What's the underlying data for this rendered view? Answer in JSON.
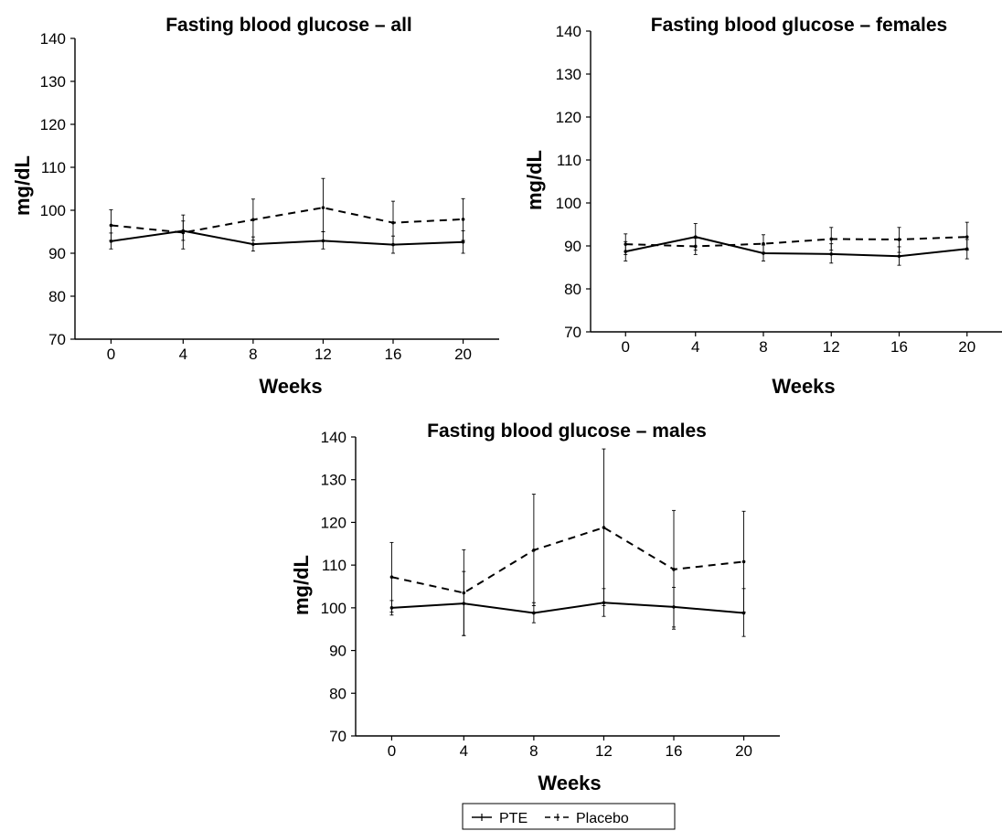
{
  "chart_data": [
    {
      "type": "line",
      "title": "Fasting blood glucose – all",
      "xlabel": "Weeks",
      "ylabel": "mg/dL",
      "x": [
        0,
        4,
        8,
        12,
        16,
        20
      ],
      "xticks": [
        "0",
        "4",
        "8",
        "12",
        "16",
        "20"
      ],
      "ylim": [
        70,
        140
      ],
      "yticks": [
        "70",
        "80",
        "90",
        "100",
        "110",
        "120",
        "130",
        "140"
      ],
      "grid": false,
      "series": [
        {
          "name": "PTE",
          "style": "solid",
          "values": [
            92.8,
            95.2,
            92.1,
            92.9,
            92.0,
            92.6
          ],
          "err_low": [
            91.0,
            93.0,
            90.5,
            91.0,
            90.0,
            90.0
          ],
          "err_high": [
            94.7,
            97.5,
            93.8,
            95.0,
            94.0,
            95.2
          ]
        },
        {
          "name": "Placebo",
          "style": "dashed",
          "values": [
            96.5,
            94.8,
            97.8,
            100.6,
            97.1,
            97.9
          ],
          "err_low": [
            93.0,
            91.0,
            93.0,
            95.0,
            92.0,
            93.0
          ],
          "err_high": [
            100.1,
            98.9,
            102.6,
            107.4,
            102.1,
            102.7
          ]
        }
      ]
    },
    {
      "type": "line",
      "title": "Fasting blood glucose – females",
      "xlabel": "Weeks",
      "ylabel": "mg/dL",
      "x": [
        0,
        4,
        8,
        12,
        16,
        20
      ],
      "xticks": [
        "0",
        "4",
        "8",
        "12",
        "16",
        "20"
      ],
      "ylim": [
        70,
        140
      ],
      "yticks": [
        "70",
        "80",
        "90",
        "100",
        "110",
        "120",
        "130",
        "140"
      ],
      "grid": false,
      "series": [
        {
          "name": "PTE",
          "style": "solid",
          "values": [
            88.7,
            92.1,
            88.3,
            88.1,
            87.6,
            89.3
          ],
          "err_low": [
            86.5,
            89.0,
            86.5,
            86.0,
            85.5,
            87.0
          ],
          "err_high": [
            91.0,
            95.2,
            90.2,
            90.5,
            89.8,
            91.5
          ]
        },
        {
          "name": "Placebo",
          "style": "dashed",
          "values": [
            90.4,
            89.9,
            90.5,
            91.6,
            91.5,
            92.1
          ],
          "err_low": [
            88.0,
            88.0,
            88.5,
            89.0,
            88.5,
            89.0
          ],
          "err_high": [
            92.8,
            91.8,
            92.6,
            94.3,
            94.3,
            95.5
          ]
        }
      ]
    },
    {
      "type": "line",
      "title": "Fasting blood glucose – males",
      "xlabel": "Weeks",
      "ylabel": "mg/dL",
      "x": [
        0,
        4,
        8,
        12,
        16,
        20
      ],
      "xticks": [
        "0",
        "4",
        "8",
        "12",
        "16",
        "20"
      ],
      "ylim": [
        70,
        140
      ],
      "yticks": [
        "70",
        "80",
        "90",
        "100",
        "110",
        "120",
        "130",
        "140"
      ],
      "grid": false,
      "series": [
        {
          "name": "PTE",
          "style": "solid",
          "values": [
            100.0,
            101.0,
            98.8,
            101.2,
            100.2,
            98.8
          ],
          "err_low": [
            98.3,
            93.5,
            96.5,
            98.0,
            95.5,
            93.3
          ],
          "err_high": [
            101.7,
            108.5,
            101.2,
            104.5,
            104.8,
            104.5
          ]
        },
        {
          "name": "Placebo",
          "style": "dashed",
          "values": [
            107.2,
            103.5,
            113.5,
            118.8,
            109.0,
            110.8
          ],
          "err_low": [
            99.0,
            93.5,
            100.5,
            100.5,
            95.0,
            99.0
          ],
          "err_high": [
            115.3,
            113.6,
            126.6,
            137.2,
            122.8,
            122.6
          ]
        }
      ]
    }
  ],
  "legend": {
    "position": "bottom-center",
    "items": [
      {
        "label": "PTE",
        "style": "solid"
      },
      {
        "label": "Placebo",
        "style": "dashed"
      }
    ]
  }
}
